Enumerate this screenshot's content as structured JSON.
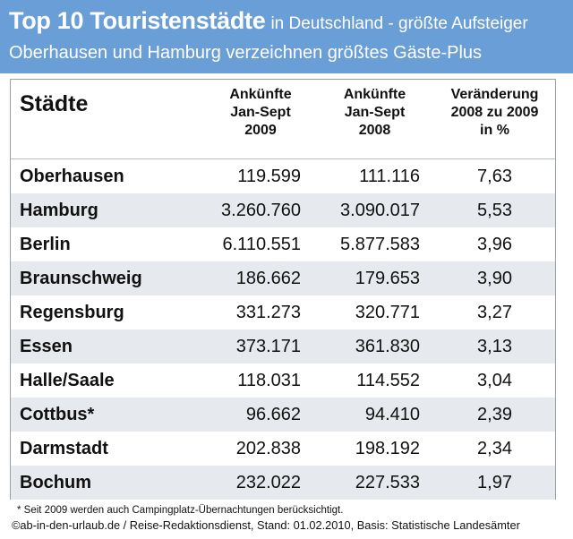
{
  "header": {
    "title_main": "Top 10 Touristenstädte",
    "title_rest": "in Deutschland - größte Aufsteiger",
    "subtitle": "Oberhausen und Hamburg verzeichnen größtes Gäste-Plus"
  },
  "table": {
    "col_city": "Städte",
    "col_2009": [
      "Ankünfte",
      "Jan-Sept",
      "2009"
    ],
    "col_2008": [
      "Ankünfte",
      "Jan-Sept",
      "2008"
    ],
    "col_change": [
      "Veränderung",
      "2008 zu 2009",
      "in %"
    ],
    "rows": [
      {
        "city": "Oberhausen",
        "v2009": "119.599",
        "v2008": "111.116",
        "change": "7,63"
      },
      {
        "city": "Hamburg",
        "v2009": "3.260.760",
        "v2008": "3.090.017",
        "change": "5,53"
      },
      {
        "city": "Berlin",
        "v2009": "6.110.551",
        "v2008": "5.877.583",
        "change": "3,96"
      },
      {
        "city": "Braunschweig",
        "v2009": "186.662",
        "v2008": "179.653",
        "change": "3,90"
      },
      {
        "city": "Regensburg",
        "v2009": "331.273",
        "v2008": "320.771",
        "change": "3,27"
      },
      {
        "city": "Essen",
        "v2009": "373.171",
        "v2008": "361.830",
        "change": "3,13"
      },
      {
        "city": "Halle/Saale",
        "v2009": "118.031",
        "v2008": "114.552",
        "change": "3,04"
      },
      {
        "city": "Cottbus*",
        "v2009": "96.662",
        "v2008": "94.410",
        "change": "2,39"
      },
      {
        "city": "Darmstadt",
        "v2009": "202.838",
        "v2008": "198.192",
        "change": "2,34"
      },
      {
        "city": "Bochum",
        "v2009": "232.022",
        "v2008": "227.533",
        "change": "1,97"
      }
    ]
  },
  "footnote": "* Seit 2009 werden auch Campingplatz-Übernachtungen berücksichtigt.",
  "source": "©ab-in-den-urlaub.de / Reise-Redaktionsdienst, Stand: 01.02.2010, Basis: Statistische Landesämter",
  "colors": {
    "header_bg": "#6a9ed6",
    "row_stripe": "#e6e9ed"
  },
  "chart_data": {
    "type": "table",
    "title": "Top 10 Touristenstädte in Deutschland - größte Aufsteiger",
    "subtitle": "Oberhausen und Hamburg verzeichnen größtes Gäste-Plus",
    "columns": [
      "Städte",
      "Ankünfte Jan-Sept 2009",
      "Ankünfte Jan-Sept 2008",
      "Veränderung 2008 zu 2009 in %"
    ],
    "categories": [
      "Oberhausen",
      "Hamburg",
      "Berlin",
      "Braunschweig",
      "Regensburg",
      "Essen",
      "Halle/Saale",
      "Cottbus*",
      "Darmstadt",
      "Bochum"
    ],
    "series": [
      {
        "name": "Ankünfte Jan-Sept 2009",
        "values": [
          119599,
          3260760,
          6110551,
          186662,
          331273,
          373171,
          118031,
          96662,
          202838,
          232022
        ]
      },
      {
        "name": "Ankünfte Jan-Sept 2008",
        "values": [
          111116,
          3090017,
          5877583,
          179653,
          320771,
          361830,
          114552,
          94410,
          198192,
          227533
        ]
      },
      {
        "name": "Veränderung 2008 zu 2009 in %",
        "values": [
          7.63,
          5.53,
          3.96,
          3.9,
          3.27,
          3.13,
          3.04,
          2.39,
          2.34,
          1.97
        ]
      }
    ]
  }
}
